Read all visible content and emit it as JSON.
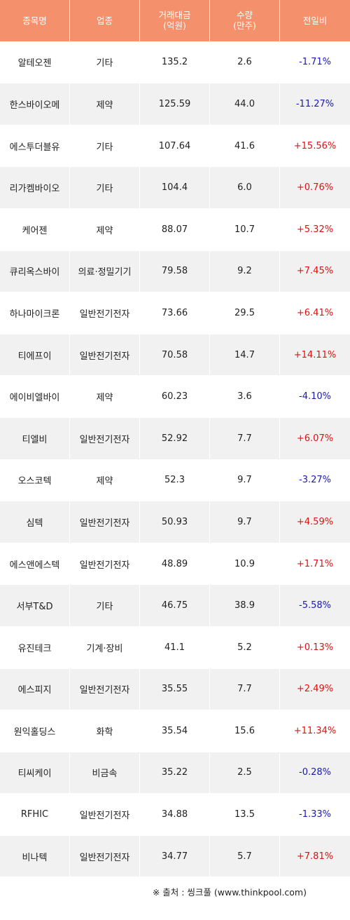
{
  "header": [
    "종목명",
    "업종",
    "거래대금\n(억원)",
    "수량\n(만주)",
    "전일비"
  ],
  "colors": {
    "header_bg": "#f4916c",
    "up": "#e01010",
    "down": "#1a1ab0",
    "stripe": "#f1f1f1"
  },
  "rows": [
    {
      "name": "알테오젠",
      "sector": "기타",
      "amount": "135.2",
      "volume": "2.6",
      "change": "-1.71%"
    },
    {
      "name": "한스바이오메",
      "sector": "제약",
      "amount": "125.59",
      "volume": "44.0",
      "change": "-11.27%"
    },
    {
      "name": "에스투더블유",
      "sector": "기타",
      "amount": "107.64",
      "volume": "41.6",
      "change": "+15.56%"
    },
    {
      "name": "리가켐바이오",
      "sector": "기타",
      "amount": "104.4",
      "volume": "6.0",
      "change": "+0.76%"
    },
    {
      "name": "케어젠",
      "sector": "제약",
      "amount": "88.07",
      "volume": "10.7",
      "change": "+5.32%"
    },
    {
      "name": "큐리옥스바이",
      "sector": "의료·정밀기기",
      "amount": "79.58",
      "volume": "9.2",
      "change": "+7.45%"
    },
    {
      "name": "하나마이크론",
      "sector": "일반전기전자",
      "amount": "73.66",
      "volume": "29.5",
      "change": "+6.41%"
    },
    {
      "name": "티에프이",
      "sector": "일반전기전자",
      "amount": "70.58",
      "volume": "14.7",
      "change": "+14.11%"
    },
    {
      "name": "에이비엘바이",
      "sector": "제약",
      "amount": "60.23",
      "volume": "3.6",
      "change": "-4.10%"
    },
    {
      "name": "티엘비",
      "sector": "일반전기전자",
      "amount": "52.92",
      "volume": "7.7",
      "change": "+6.07%"
    },
    {
      "name": "오스코텍",
      "sector": "제약",
      "amount": "52.3",
      "volume": "9.7",
      "change": "-3.27%"
    },
    {
      "name": "심텍",
      "sector": "일반전기전자",
      "amount": "50.93",
      "volume": "9.7",
      "change": "+4.59%"
    },
    {
      "name": "에스앤에스텍",
      "sector": "일반전기전자",
      "amount": "48.89",
      "volume": "10.9",
      "change": "+1.71%"
    },
    {
      "name": "서부T&D",
      "sector": "기타",
      "amount": "46.75",
      "volume": "38.9",
      "change": "-5.58%"
    },
    {
      "name": "유진테크",
      "sector": "기계·장비",
      "amount": "41.1",
      "volume": "5.2",
      "change": "+0.13%"
    },
    {
      "name": "에스피지",
      "sector": "일반전기전자",
      "amount": "35.55",
      "volume": "7.7",
      "change": "+2.49%"
    },
    {
      "name": "원익홀딩스",
      "sector": "화학",
      "amount": "35.54",
      "volume": "15.6",
      "change": "+11.34%"
    },
    {
      "name": "티씨케이",
      "sector": "비금속",
      "amount": "35.22",
      "volume": "2.5",
      "change": "-0.28%"
    },
    {
      "name": "RFHIC",
      "sector": "일반전기전자",
      "amount": "34.88",
      "volume": "13.5",
      "change": "-1.33%"
    },
    {
      "name": "비나텍",
      "sector": "일반전기전자",
      "amount": "34.77",
      "volume": "5.7",
      "change": "+7.81%"
    }
  ],
  "source": "※ 출처 : 씽크풀 (www.thinkpool.com)"
}
